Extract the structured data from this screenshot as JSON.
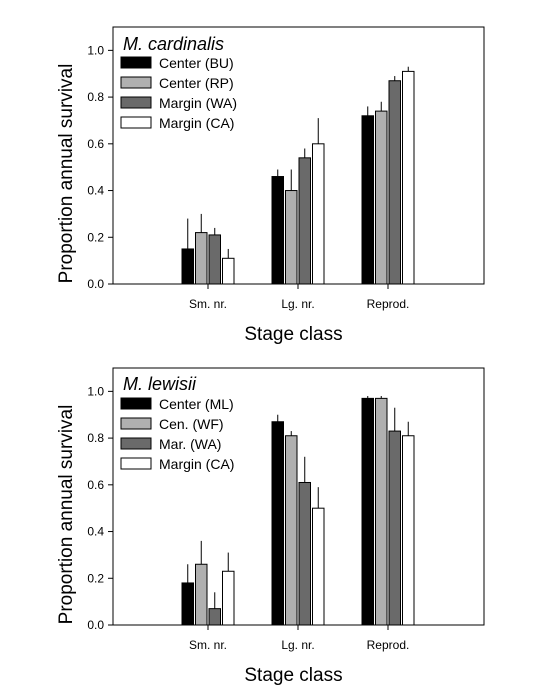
{
  "chart_data": [
    {
      "type": "bar",
      "title": "M. cardinalis",
      "xlabel": "Stage class",
      "ylabel": "Proportion annual survival",
      "ylim": [
        0,
        1.1
      ],
      "yticks": [
        "0.0",
        "0.2",
        "0.4",
        "0.6",
        "0.8",
        "1.0"
      ],
      "categories": [
        "Sm. nr.",
        "Lg. nr.",
        "Reprod."
      ],
      "legend_position": "top-left",
      "series": [
        {
          "name": "Center (BU)",
          "color": "#000000",
          "values": [
            0.15,
            0.46,
            0.72
          ],
          "errors": [
            0.13,
            0.03,
            0.04
          ]
        },
        {
          "name": "Center (RP)",
          "color": "#b0b0b0",
          "values": [
            0.22,
            0.4,
            0.74
          ],
          "errors": [
            0.08,
            0.09,
            0.04
          ]
        },
        {
          "name": "Margin (WA)",
          "color": "#6a6a6a",
          "values": [
            0.21,
            0.54,
            0.87
          ],
          "errors": [
            0.03,
            0.04,
            0.02
          ]
        },
        {
          "name": "Margin (CA)",
          "color": "#ffffff",
          "values": [
            0.11,
            0.6,
            0.91
          ],
          "errors": [
            0.04,
            0.11,
            0.02
          ]
        }
      ]
    },
    {
      "type": "bar",
      "title": "M. lewisii",
      "xlabel": "Stage class",
      "ylabel": "Proportion annual survival",
      "ylim": [
        0,
        1.1
      ],
      "yticks": [
        "0.0",
        "0.2",
        "0.4",
        "0.6",
        "0.8",
        "1.0"
      ],
      "categories": [
        "Sm. nr.",
        "Lg. nr.",
        "Reprod."
      ],
      "legend_position": "top-left",
      "series": [
        {
          "name": "Center (ML)",
          "color": "#000000",
          "values": [
            0.18,
            0.87,
            0.97
          ],
          "errors": [
            0.08,
            0.03,
            0.01
          ]
        },
        {
          "name": "Cen. (WF)",
          "color": "#b0b0b0",
          "values": [
            0.26,
            0.81,
            0.97
          ],
          "errors": [
            0.1,
            0.02,
            0.01
          ]
        },
        {
          "name": "Mar. (WA)",
          "color": "#6a6a6a",
          "values": [
            0.07,
            0.61,
            0.83
          ],
          "errors": [
            0.07,
            0.11,
            0.1
          ]
        },
        {
          "name": "Margin (CA)",
          "color": "#ffffff",
          "values": [
            0.23,
            0.5,
            0.81
          ],
          "errors": [
            0.08,
            0.09,
            0.06
          ]
        }
      ]
    }
  ]
}
